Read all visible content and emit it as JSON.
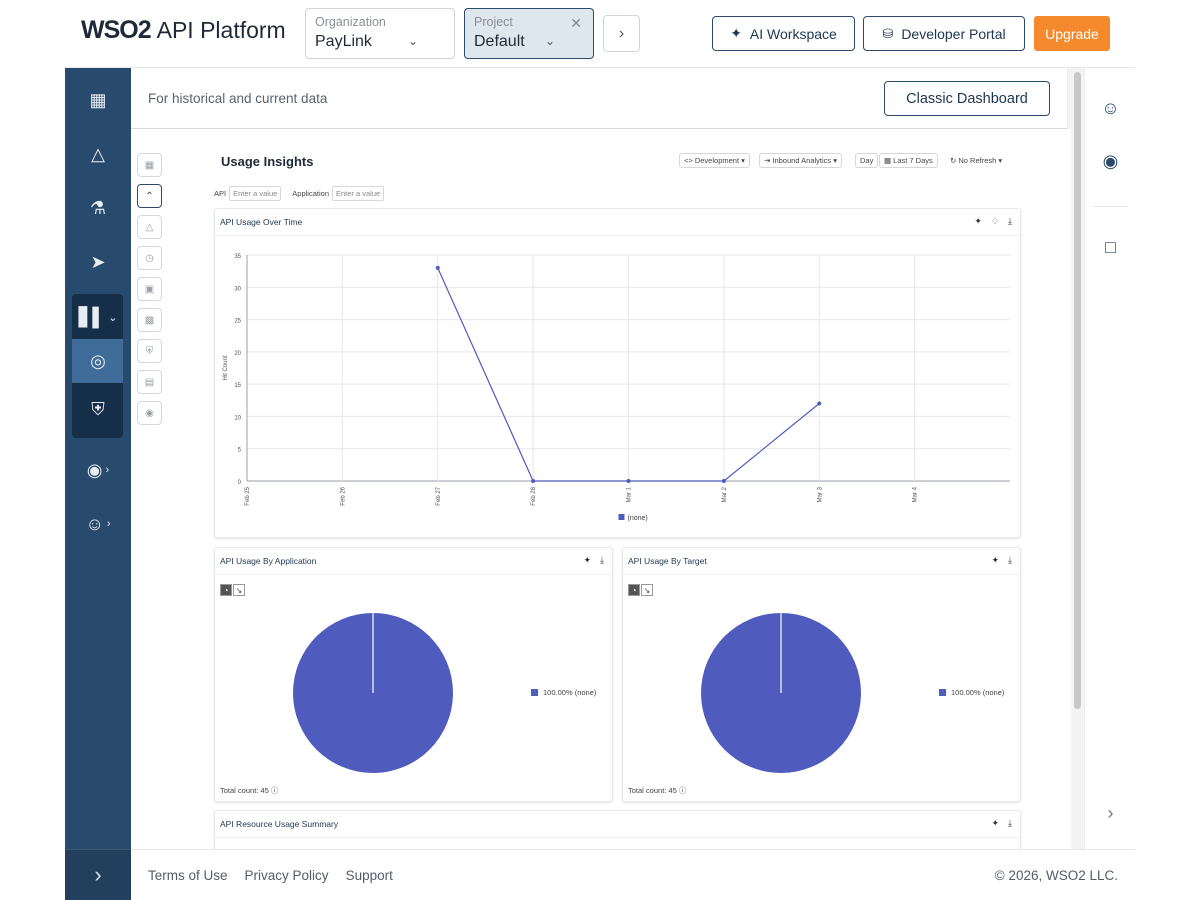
{
  "header": {
    "logo_brand": "WSO2",
    "logo_product": "API Platform",
    "organization": {
      "label": "Organization",
      "value": "PayLink"
    },
    "project": {
      "label": "Project",
      "value": "Default"
    },
    "ai_workspace": "AI Workspace",
    "developer_portal": "Developer Portal",
    "upgrade": "Upgrade"
  },
  "main": {
    "subtitle": "For historical and current data",
    "classic_dashboard": "Classic Dashboard"
  },
  "dashboard": {
    "title": "Usage Insights",
    "environment": "Development",
    "analytics": "Inbound Analytics",
    "granularity": "Day",
    "range": "Last 7 Days",
    "refresh": "No Refresh",
    "filters": {
      "api_label": "API",
      "api_placeholder": "Enter a value",
      "app_label": "Application",
      "app_placeholder": "Enter a value"
    }
  },
  "chart_data": [
    {
      "type": "line",
      "title": "API Usage Over Time",
      "ylabel": "Hit Count",
      "xlabel": "",
      "ylim": [
        0,
        35
      ],
      "yticks": [
        0,
        5,
        10,
        15,
        20,
        25,
        30,
        35
      ],
      "categories": [
        "Feb 25",
        "Feb 26",
        "Feb 27",
        "Feb 28",
        "Mar 1",
        "Mar 2",
        "Mar 3",
        "Mar 4"
      ],
      "series": [
        {
          "name": "(none)",
          "x": [
            "Feb 27",
            "Feb 28",
            "Mar 1",
            "Mar 2",
            "Mar 3"
          ],
          "values": [
            33,
            0,
            0,
            0,
            12
          ]
        }
      ],
      "grid": true,
      "legend": "bottom-center",
      "color": "#4f5bbd"
    },
    {
      "type": "pie",
      "title": "API Usage By Application",
      "slices": [
        {
          "label": "(none)",
          "value": 100.0,
          "display": "100.00% (none)"
        }
      ],
      "total_label": "Total count: 45",
      "color": "#4f5bbd"
    },
    {
      "type": "pie",
      "title": "API Usage By Target",
      "slices": [
        {
          "label": "(none)",
          "value": 100.0,
          "display": "100.00% (none)"
        }
      ],
      "total_label": "Total count: 45",
      "color": "#4f5bbd"
    }
  ],
  "summary_panel": {
    "title": "API Resource Usage Summary"
  },
  "footer": {
    "terms": "Terms of Use",
    "privacy": "Privacy Policy",
    "support": "Support",
    "copyright": "© 2026, WSO2 LLC."
  }
}
